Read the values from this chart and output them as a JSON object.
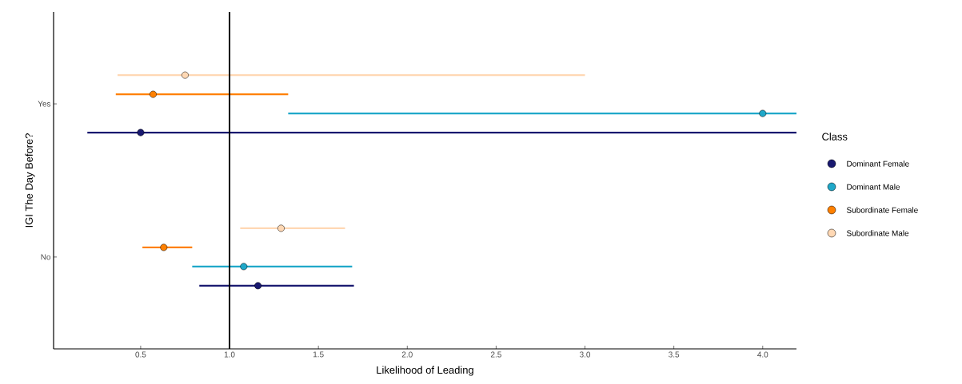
{
  "chart_data": {
    "type": "scatter",
    "orientation": "horizontal",
    "xlabel": "Likelihood of Leading",
    "ylabel": "IGI The Day Before?",
    "legend_title": "Class",
    "legend": "right",
    "marker": "circle",
    "categories": [
      "Yes",
      "No"
    ],
    "xlim": [
      0.01,
      4.19
    ],
    "xticks": [
      0.5,
      {
        "value": 1,
        "label": "1.0"
      },
      1.5,
      {
        "value": 2,
        "label": "2.0"
      },
      2.5,
      {
        "value": 3,
        "label": "3.0"
      },
      3.5,
      {
        "value": 4,
        "label": "4.0"
      }
    ],
    "series": [
      {
        "name": "Dominant Female",
        "color": "#191970",
        "values": [
          0.5,
          1.16
        ],
        "errors": [
          [
            0.2,
            4.19
          ],
          [
            0.83,
            1.7
          ]
        ]
      },
      {
        "name": "Dominant Male",
        "color": "#1fa8c9",
        "values": [
          4.0,
          1.08
        ],
        "errors": [
          [
            1.33,
            4.19
          ],
          [
            0.79,
            1.69
          ]
        ]
      },
      {
        "name": "Subordinate Female",
        "color": "#ff8000",
        "values": [
          0.57,
          0.63
        ],
        "errors": [
          [
            0.36,
            1.33
          ],
          [
            0.51,
            0.79
          ]
        ]
      },
      {
        "name": "Subordinate Male",
        "color": "#ffd8b4",
        "values": [
          0.75,
          1.29
        ],
        "errors": [
          [
            0.37,
            3.0
          ],
          [
            1.06,
            1.65
          ]
        ]
      }
    ],
    "ref_lines": [
      {
        "axis": "x",
        "value": 1,
        "color": "#000000"
      }
    ]
  }
}
